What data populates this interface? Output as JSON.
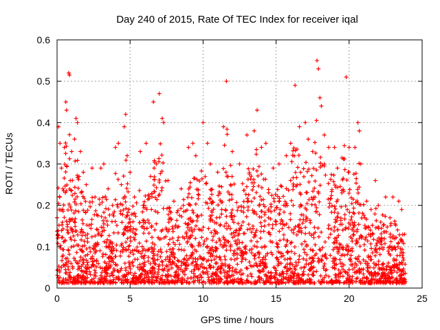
{
  "colors": {
    "points": "#ff0000",
    "grid": "#a0a0a0",
    "axis": "#000000",
    "background": "#ffffff"
  },
  "chart_data": {
    "type": "scatter",
    "title": "Day 240 of 2015, Rate Of TEC Index for receiver iqal",
    "xlabel": "GPS time / hours",
    "ylabel": "ROTI / TECUs",
    "xlim": [
      0,
      25
    ],
    "ylim": [
      0,
      0.6
    ],
    "xticks": [
      0,
      5,
      10,
      15,
      20,
      25
    ],
    "xtick_labels": [
      "0",
      "5",
      "10",
      "15",
      "20",
      "25"
    ],
    "yticks": [
      0,
      0.1,
      0.2,
      0.3,
      0.4,
      0.5,
      0.6
    ],
    "ytick_labels": [
      "0",
      "0.1",
      "0.2",
      "0.3",
      "0.4",
      "0.5",
      "0.6"
    ],
    "grid": true,
    "marker": "+",
    "series": [
      {
        "name": "ROTI",
        "description_note": "dense point cloud; envelope sampled below",
        "points": [
          [
            0.0,
            0.17
          ],
          [
            0.1,
            0.39
          ],
          [
            0.2,
            0.35
          ],
          [
            0.3,
            0.29
          ],
          [
            0.4,
            0.24
          ],
          [
            0.5,
            0.34
          ],
          [
            0.6,
            0.45
          ],
          [
            0.65,
            0.43
          ],
          [
            0.8,
            0.52
          ],
          [
            0.85,
            0.515
          ],
          [
            0.9,
            0.26
          ],
          [
            1.0,
            0.33
          ],
          [
            1.2,
            0.36
          ],
          [
            1.3,
            0.41
          ],
          [
            1.4,
            0.4
          ],
          [
            1.6,
            0.33
          ],
          [
            1.8,
            0.28
          ],
          [
            2.0,
            0.25
          ],
          [
            2.4,
            0.29
          ],
          [
            2.6,
            0.22
          ],
          [
            3.0,
            0.29
          ],
          [
            3.2,
            0.3
          ],
          [
            3.5,
            0.24
          ],
          [
            3.8,
            0.2
          ],
          [
            4.0,
            0.34
          ],
          [
            4.2,
            0.35
          ],
          [
            4.4,
            0.25
          ],
          [
            4.6,
            0.39
          ],
          [
            4.7,
            0.42
          ],
          [
            4.8,
            0.32
          ],
          [
            5.0,
            0.28
          ],
          [
            5.3,
            0.22
          ],
          [
            5.7,
            0.33
          ],
          [
            5.9,
            0.2
          ],
          [
            6.1,
            0.35
          ],
          [
            6.4,
            0.27
          ],
          [
            6.6,
            0.45
          ],
          [
            6.8,
            0.3
          ],
          [
            7.0,
            0.47
          ],
          [
            7.2,
            0.41
          ],
          [
            7.3,
            0.4
          ],
          [
            7.6,
            0.26
          ],
          [
            8.0,
            0.21
          ],
          [
            8.5,
            0.24
          ],
          [
            9.0,
            0.34
          ],
          [
            9.3,
            0.35
          ],
          [
            9.5,
            0.32
          ],
          [
            10.0,
            0.4
          ],
          [
            10.3,
            0.35
          ],
          [
            10.5,
            0.3
          ],
          [
            11.0,
            0.28
          ],
          [
            11.4,
            0.39
          ],
          [
            11.6,
            0.5
          ],
          [
            12.0,
            0.33
          ],
          [
            12.5,
            0.3
          ],
          [
            13.0,
            0.37
          ],
          [
            13.5,
            0.38
          ],
          [
            13.7,
            0.43
          ],
          [
            14.0,
            0.34
          ],
          [
            14.3,
            0.35
          ],
          [
            14.8,
            0.29
          ],
          [
            15.2,
            0.3
          ],
          [
            15.7,
            0.32
          ],
          [
            16.0,
            0.35
          ],
          [
            16.3,
            0.49
          ],
          [
            16.6,
            0.39
          ],
          [
            17.0,
            0.4
          ],
          [
            17.2,
            0.36
          ],
          [
            17.5,
            0.33
          ],
          [
            17.8,
            0.55
          ],
          [
            17.9,
            0.53
          ],
          [
            18.0,
            0.46
          ],
          [
            18.1,
            0.44
          ],
          [
            18.3,
            0.37
          ],
          [
            18.6,
            0.34
          ],
          [
            19.0,
            0.34
          ],
          [
            19.2,
            0.29
          ],
          [
            19.8,
            0.51
          ],
          [
            20.0,
            0.34
          ],
          [
            20.4,
            0.34
          ],
          [
            20.6,
            0.4
          ],
          [
            20.7,
            0.38
          ],
          [
            20.8,
            0.3
          ],
          [
            21.2,
            0.21
          ],
          [
            21.5,
            0.19
          ],
          [
            21.8,
            0.26
          ],
          [
            22.0,
            0.2
          ],
          [
            22.5,
            0.22
          ],
          [
            22.8,
            0.17
          ],
          [
            23.0,
            0.22
          ],
          [
            23.4,
            0.21
          ],
          [
            23.6,
            0.19
          ],
          [
            23.8,
            0.13
          ]
        ]
      }
    ]
  }
}
